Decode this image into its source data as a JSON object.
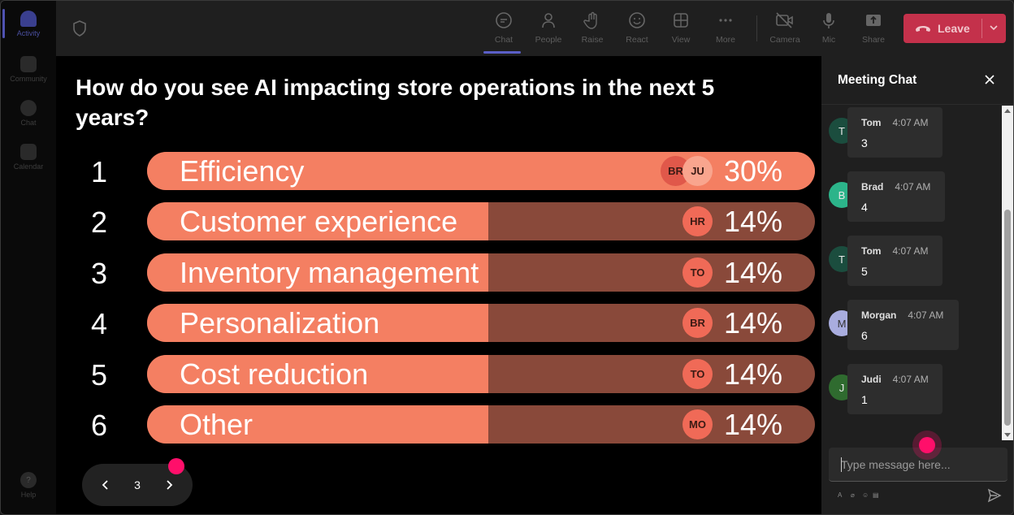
{
  "rail": {
    "items": [
      {
        "label": "Activity",
        "icon": "bell-icon",
        "active": true
      },
      {
        "label": "Community",
        "icon": "community-icon"
      },
      {
        "label": "Chat",
        "icon": "chat-icon"
      },
      {
        "label": "Calendar",
        "icon": "calendar-icon"
      },
      {
        "label": "Help",
        "icon": "help-icon"
      }
    ]
  },
  "toolbar": {
    "buttons": [
      {
        "label": "Chat",
        "icon": "chat-bubble-icon",
        "active": true
      },
      {
        "label": "People",
        "icon": "person-icon"
      },
      {
        "label": "Raise",
        "icon": "hand-icon"
      },
      {
        "label": "React",
        "icon": "smiley-icon"
      },
      {
        "label": "View",
        "icon": "grid-icon"
      },
      {
        "label": "More",
        "icon": "ellipsis-icon"
      },
      {
        "label": "Camera",
        "icon": "camera-off-icon"
      },
      {
        "label": "Mic",
        "icon": "mic-icon"
      },
      {
        "label": "Share",
        "icon": "share-icon"
      }
    ],
    "leave_label": "Leave",
    "leave_color": "#c4314b"
  },
  "poll": {
    "question": "How do you see AI impacting store operations in the next 5 years?",
    "fill_color": "#f47f62",
    "track_color": "#89493a",
    "options": [
      {
        "num": "1",
        "label": "Efficiency",
        "pct": "30%",
        "fill": 1.0,
        "avatars": [
          "BR",
          "JU"
        ]
      },
      {
        "num": "2",
        "label": "Customer experience",
        "pct": "14%",
        "fill": 0.511,
        "avatars": [
          "HR"
        ]
      },
      {
        "num": "3",
        "label": "Inventory management",
        "pct": "14%",
        "fill": 0.511,
        "avatars": [
          "TO"
        ]
      },
      {
        "num": "4",
        "label": "Personalization",
        "pct": "14%",
        "fill": 0.511,
        "avatars": [
          "BR"
        ]
      },
      {
        "num": "5",
        "label": "Cost reduction",
        "pct": "14%",
        "fill": 0.511,
        "avatars": [
          "TO"
        ]
      },
      {
        "num": "6",
        "label": "Other",
        "pct": "14%",
        "fill": 0.511,
        "avatars": [
          "MO"
        ]
      }
    ],
    "page": "3"
  },
  "chat": {
    "title": "Meeting Chat",
    "messages": [
      {
        "initial": "T",
        "name": "Tom",
        "time": "4:07 AM",
        "text": "3",
        "color": "#1b4d3e"
      },
      {
        "initial": "B",
        "name": "Brad",
        "time": "4:07 AM",
        "text": "4",
        "color": "#2cb48a"
      },
      {
        "initial": "T",
        "name": "Tom",
        "time": "4:07 AM",
        "text": "5",
        "color": "#1b4d3e"
      },
      {
        "initial": "M",
        "name": "Morgan",
        "time": "4:07 AM",
        "text": "6",
        "color": "#a9addf"
      },
      {
        "initial": "J",
        "name": "Judi",
        "time": "4:07 AM",
        "text": "1",
        "color": "#2f6b2f"
      }
    ],
    "placeholder": "Type message here..."
  }
}
